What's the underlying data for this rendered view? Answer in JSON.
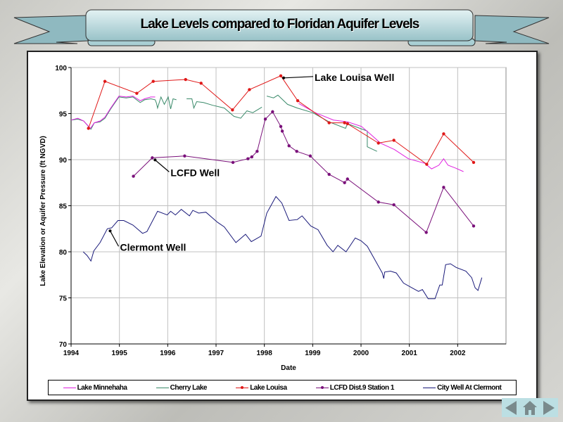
{
  "title": "Lake Levels compared to Floridan Aquifer Levels",
  "colors": {
    "minnehaha": "#e020e0",
    "cherry": "#3a8a6a",
    "louisa": "#e01818",
    "lcfd": "#7a107a",
    "clermont": "#1a1a7a",
    "grid": "#c0c0c0"
  },
  "navigation": {
    "prev_icon": "triangle-left",
    "home_icon": "house",
    "next_icon": "triangle-right"
  },
  "chart_data": {
    "type": "line",
    "xlabel": "Date",
    "ylabel": "Lake Elevation or Aquifer Pressure (ft NGVD)",
    "xlim": [
      1994,
      2003
    ],
    "ylim": [
      70,
      100
    ],
    "xticks": [
      "1994",
      "1995",
      "1996",
      "1997",
      "1998",
      "1999",
      "2000",
      "2001",
      "2002"
    ],
    "yticks": [
      "70",
      "75",
      "80",
      "85",
      "90",
      "95",
      "100"
    ],
    "grid": true,
    "legend_position": "bottom",
    "annotations": [
      {
        "text": "Lake Louisa Well",
        "points_to": [
          1998.34,
          99.1
        ]
      },
      {
        "text": "LCFD Well",
        "points_to": [
          1995.68,
          90.2
        ]
      },
      {
        "text": "Clermont  Well",
        "points_to": [
          1994.75,
          82.5
        ]
      }
    ],
    "series": [
      {
        "key": "minnehaha",
        "name": "Lake Minnehaha",
        "markers": false,
        "points": [
          [
            1994.0,
            94.3
          ],
          [
            1994.14,
            94.5
          ],
          [
            1994.26,
            94.2
          ],
          [
            1994.4,
            93.4
          ],
          [
            1994.48,
            94.0
          ],
          [
            1994.6,
            94.2
          ],
          [
            1994.7,
            94.6
          ],
          [
            1994.82,
            95.6
          ],
          [
            1994.99,
            96.9
          ],
          [
            1995.14,
            96.8
          ],
          [
            1995.28,
            96.9
          ],
          [
            1995.43,
            96.4
          ],
          [
            1995.52,
            96.6
          ],
          [
            1995.65,
            96.8
          ],
          [
            1995.74,
            96.8
          ],
          null,
          [
            1998.71,
            96.1
          ],
          [
            1999.05,
            95.1
          ],
          [
            1999.43,
            94.3
          ],
          [
            1999.72,
            94.1
          ],
          [
            2000.01,
            93.6
          ],
          [
            2000.21,
            92.7
          ],
          [
            2000.4,
            91.8
          ],
          [
            2000.69,
            91.1
          ],
          [
            2000.98,
            90.1
          ],
          [
            2001.32,
            89.6
          ],
          [
            2001.46,
            89.0
          ],
          [
            2001.61,
            89.4
          ],
          [
            2001.71,
            90.1
          ],
          [
            2001.8,
            89.4
          ],
          [
            2001.95,
            89.1
          ],
          [
            2002.12,
            88.7
          ]
        ]
      },
      {
        "key": "cherry",
        "name": "Cherry Lake",
        "markers": false,
        "points": [
          [
            1994.0,
            94.3
          ],
          [
            1994.14,
            94.4
          ],
          [
            1994.26,
            94.2
          ],
          [
            1994.41,
            93.3
          ],
          [
            1994.48,
            94.0
          ],
          [
            1994.6,
            94.1
          ],
          [
            1994.7,
            94.5
          ],
          [
            1994.82,
            95.5
          ],
          [
            1994.99,
            96.8
          ],
          [
            1995.14,
            96.7
          ],
          [
            1995.28,
            96.8
          ],
          [
            1995.43,
            96.2
          ],
          [
            1995.52,
            96.5
          ],
          [
            1995.65,
            96.6
          ],
          [
            1995.74,
            96.5
          ],
          [
            1995.77,
            96.1
          ],
          [
            1995.79,
            95.6
          ],
          [
            1995.86,
            96.8
          ],
          [
            1995.93,
            96.0
          ],
          [
            1996.01,
            96.8
          ],
          [
            1996.06,
            95.5
          ],
          [
            1996.11,
            96.6
          ],
          [
            1996.18,
            96.5
          ],
          null,
          [
            1996.39,
            96.6
          ],
          [
            1996.5,
            96.6
          ],
          [
            1996.54,
            95.6
          ],
          [
            1996.6,
            96.3
          ],
          [
            1996.74,
            96.2
          ],
          [
            1996.93,
            95.9
          ],
          [
            1997.17,
            95.6
          ],
          [
            1997.37,
            94.7
          ],
          [
            1997.51,
            94.5
          ],
          [
            1997.64,
            95.3
          ],
          [
            1997.76,
            95.1
          ],
          [
            1997.95,
            95.7
          ],
          null,
          [
            1998.05,
            96.9
          ],
          [
            1998.19,
            96.7
          ],
          [
            1998.28,
            97.0
          ],
          [
            1998.48,
            96.0
          ],
          [
            1998.68,
            95.6
          ],
          [
            1999.0,
            95.1
          ],
          [
            1999.34,
            94.1
          ],
          [
            1999.68,
            93.4
          ],
          [
            1999.72,
            93.9
          ],
          [
            2000.13,
            93.1
          ],
          [
            2000.13,
            91.4
          ],
          [
            2000.33,
            90.9
          ]
        ]
      },
      {
        "key": "louisa",
        "name": "Lake Louisa",
        "markers": true,
        "points": [
          [
            1994.36,
            93.4
          ],
          [
            1994.7,
            98.5
          ],
          [
            1995.36,
            97.2
          ],
          [
            1995.7,
            98.5
          ],
          [
            1996.37,
            98.7
          ],
          [
            1996.69,
            98.3
          ],
          [
            1997.34,
            95.4
          ],
          [
            1997.69,
            97.6
          ],
          [
            1998.34,
            99.1
          ],
          [
            1998.69,
            96.4
          ],
          [
            1999.34,
            94.0
          ],
          [
            1999.66,
            94.0
          ],
          [
            1999.72,
            93.9
          ],
          [
            2000.36,
            91.8
          ],
          [
            2000.68,
            92.1
          ],
          [
            2001.36,
            89.5
          ],
          [
            2001.71,
            92.8
          ],
          [
            2002.33,
            89.7
          ]
        ]
      },
      {
        "key": "lcfd",
        "name": "LCFD Dist.9 Station 1",
        "markers": true,
        "points": [
          [
            1995.29,
            88.2
          ],
          [
            1995.68,
            90.2
          ],
          [
            1996.35,
            90.4
          ],
          [
            1997.35,
            89.7
          ],
          [
            1997.66,
            90.1
          ],
          [
            1997.74,
            90.3
          ],
          [
            1997.85,
            90.9
          ],
          [
            1998.02,
            94.4
          ],
          [
            1998.17,
            95.2
          ],
          [
            1998.34,
            93.6
          ],
          [
            1998.37,
            93.1
          ],
          [
            1998.51,
            91.5
          ],
          [
            1998.67,
            90.9
          ],
          [
            1998.95,
            90.4
          ],
          [
            1999.34,
            88.4
          ],
          [
            1999.66,
            87.5
          ],
          [
            1999.72,
            87.9
          ],
          [
            2000.36,
            85.4
          ],
          [
            2000.68,
            85.1
          ],
          [
            2001.35,
            82.1
          ],
          [
            2001.71,
            87.0
          ],
          [
            2002.33,
            82.8
          ]
        ]
      },
      {
        "key": "clermont",
        "name": "City Well At Clermont",
        "markers": false,
        "points": [
          [
            1994.25,
            80.0
          ],
          [
            1994.33,
            79.6
          ],
          [
            1994.41,
            79.0
          ],
          [
            1994.47,
            80.1
          ],
          [
            1994.6,
            81.0
          ],
          [
            1994.75,
            82.5
          ],
          [
            1994.84,
            82.6
          ],
          [
            1994.97,
            83.4
          ],
          [
            1995.09,
            83.4
          ],
          [
            1995.28,
            82.9
          ],
          [
            1995.48,
            82.0
          ],
          [
            1995.57,
            82.2
          ],
          [
            1995.79,
            84.4
          ],
          [
            1995.99,
            84.0
          ],
          [
            1996.06,
            84.4
          ],
          [
            1996.16,
            84.0
          ],
          [
            1996.28,
            84.6
          ],
          [
            1996.45,
            83.9
          ],
          [
            1996.52,
            84.5
          ],
          [
            1996.64,
            84.2
          ],
          [
            1996.79,
            84.3
          ],
          [
            1997.03,
            83.2
          ],
          [
            1997.17,
            82.7
          ],
          [
            1997.41,
            81.0
          ],
          [
            1997.61,
            81.9
          ],
          [
            1997.73,
            81.1
          ],
          [
            1997.93,
            81.7
          ],
          [
            1998.05,
            84.2
          ],
          [
            1998.24,
            86.0
          ],
          [
            1998.36,
            85.3
          ],
          [
            1998.51,
            83.4
          ],
          [
            1998.68,
            83.5
          ],
          [
            1998.78,
            83.9
          ],
          [
            1998.96,
            82.8
          ],
          [
            1999.11,
            82.4
          ],
          [
            1999.3,
            80.7
          ],
          [
            1999.42,
            80.0
          ],
          [
            1999.52,
            80.7
          ],
          [
            1999.69,
            80.0
          ],
          [
            1999.88,
            81.5
          ],
          [
            2000.0,
            81.2
          ],
          [
            2000.13,
            80.6
          ],
          [
            2000.44,
            77.7
          ],
          [
            2000.47,
            77.1
          ],
          [
            2000.49,
            77.8
          ],
          [
            2000.61,
            77.9
          ],
          [
            2000.73,
            77.7
          ],
          [
            2000.88,
            76.6
          ],
          [
            2001.05,
            76.1
          ],
          [
            2001.19,
            75.7
          ],
          [
            2001.27,
            75.9
          ],
          [
            2001.39,
            74.9
          ],
          [
            2001.53,
            74.9
          ],
          [
            2001.63,
            76.4
          ],
          [
            2001.68,
            76.4
          ],
          [
            2001.75,
            78.6
          ],
          [
            2001.85,
            78.7
          ],
          [
            2001.97,
            78.3
          ],
          [
            2002.17,
            77.9
          ],
          [
            2002.29,
            77.2
          ],
          [
            2002.36,
            76.1
          ],
          [
            2002.42,
            75.8
          ],
          [
            2002.5,
            77.2
          ]
        ]
      }
    ]
  }
}
